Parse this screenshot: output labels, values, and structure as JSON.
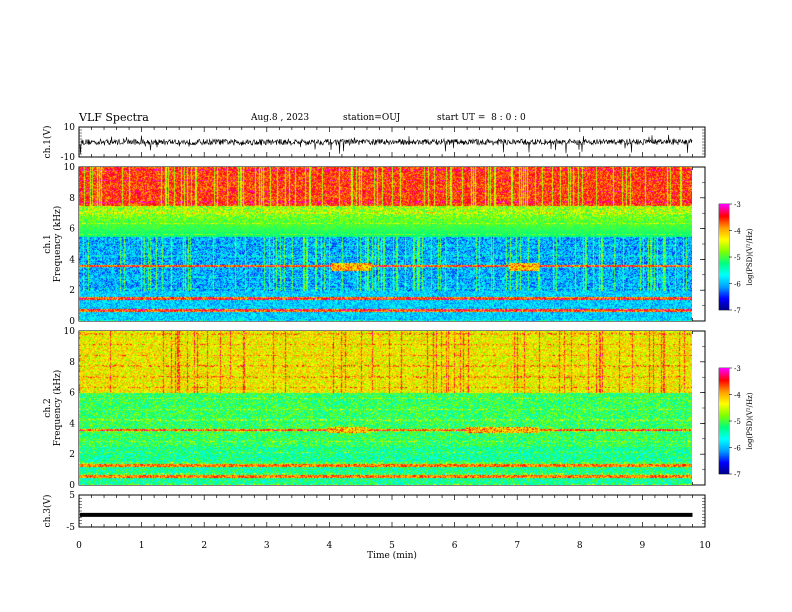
{
  "header": {
    "title": "VLF Spectra",
    "date": "Aug.8 , 2023",
    "station": "station=OUJ",
    "start_ut": "start UT =  8 : 0 : 0"
  },
  "chart_data": [
    {
      "type": "line",
      "panel": "ch1-waveform",
      "ylabel": "ch.1(V)",
      "ylim": [
        -10,
        10
      ],
      "y_ticks": [
        "10",
        "-10"
      ],
      "xlim": [
        0,
        10
      ],
      "baseline_value": 0,
      "noise_band": [
        -2,
        2
      ],
      "spike_range": [
        -8,
        5
      ],
      "data_extent_min": 9.8
    },
    {
      "type": "heatmap",
      "panel": "ch1-spectrogram",
      "ylabel": "ch.1\nFrequency (kHz)",
      "ylabel_line1": "ch.1",
      "ylabel_line2": "Frequency (kHz)",
      "ylim": [
        0,
        10
      ],
      "y_ticks": [
        "0",
        "2",
        "4",
        "6",
        "8",
        "10"
      ],
      "xlim": [
        0,
        10
      ],
      "colorbar": {
        "label": "log(PSD)(V²/Hz)",
        "min": -7,
        "max": -3,
        "ticks": [
          "-3",
          "-4",
          "-5",
          "-6",
          "-7"
        ]
      },
      "strong_bands_khz": [
        3.6,
        1.5,
        0.7
      ],
      "high_band_min_khz": 7.5,
      "bursts": [
        {
          "t0": 4.1,
          "t1": 4.75,
          "f0": 3.3,
          "f1": 3.8
        },
        {
          "t0": 7.0,
          "t1": 7.5,
          "f0": 3.3,
          "f1": 3.8
        }
      ]
    },
    {
      "type": "heatmap",
      "panel": "ch2-spectrogram",
      "ylabel": "ch.2\nFrequency (kHz)",
      "ylabel_line1": "ch.2",
      "ylabel_line2": "Frequency (kHz)",
      "ylim": [
        0,
        10
      ],
      "y_ticks": [
        "0",
        "2",
        "4",
        "6",
        "8",
        "10"
      ],
      "xlim": [
        0,
        10
      ],
      "colorbar": {
        "label": "log(PSD)(V²/Hz)",
        "min": -7,
        "max": -3,
        "ticks": [
          "-3",
          "-4",
          "-5",
          "-6",
          "-7"
        ]
      },
      "strong_bands_khz": [
        3.6,
        1.3,
        0.6
      ],
      "bursts": [
        {
          "t0": 4.05,
          "t1": 4.7,
          "f0": 3.4,
          "f1": 3.8
        },
        {
          "t0": 6.3,
          "t1": 7.5,
          "f0": 3.4,
          "f1": 3.8
        }
      ]
    },
    {
      "type": "line",
      "panel": "ch3-waveform",
      "ylabel": "ch.3(V)",
      "ylim": [
        -5,
        5
      ],
      "y_ticks": [
        "5",
        "-5"
      ],
      "xlim": [
        0,
        10
      ],
      "constant_value": -1.2,
      "data_extent_min": 9.8
    }
  ],
  "x_axis": {
    "label": "Time (min)",
    "ticks": [
      "0",
      "1",
      "2",
      "3",
      "4",
      "5",
      "6",
      "7",
      "8",
      "9",
      "10"
    ]
  },
  "colors": {
    "colormap": [
      "#000080",
      "#0000ff",
      "#00a0ff",
      "#00ffff",
      "#00ff80",
      "#80ff00",
      "#ffff00",
      "#ffa000",
      "#ff0000",
      "#ff00ff"
    ],
    "waveform": "#000000",
    "frame": "#000000"
  }
}
